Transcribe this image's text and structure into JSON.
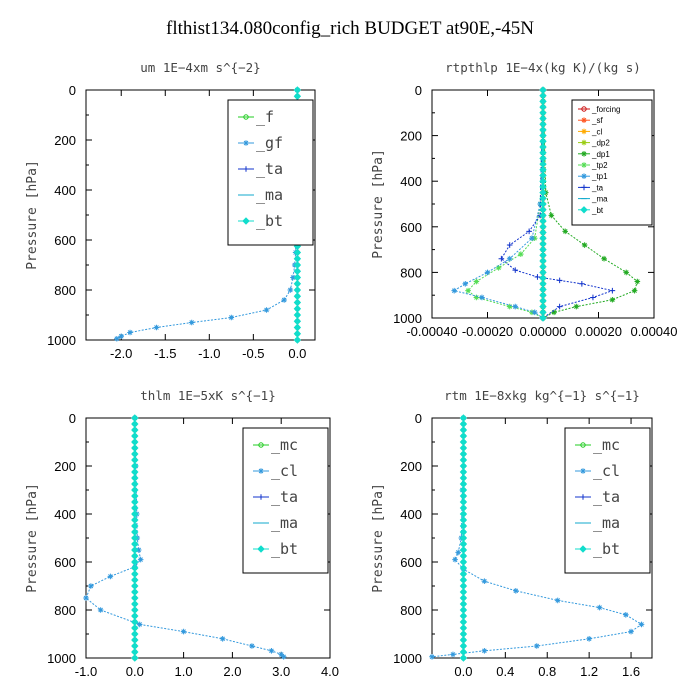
{
  "figure": {
    "suptitle": "flthist134.080config_rich  BUDGET at90E,-45N"
  },
  "chart_data": [
    {
      "type": "line",
      "title": "um  1E−4xm s^{−2}",
      "ylabel": "Pressure [hPa]",
      "ylim": [
        1000,
        0
      ],
      "xlim": [
        -2.4,
        0.2
      ],
      "xticks": [
        -2.0,
        -1.5,
        -1.0,
        -0.5,
        0.0
      ],
      "xtick_labels": [
        "-2.0",
        "-1.5",
        "-1.0",
        "-0.5",
        "0.0"
      ],
      "yticks": [
        0,
        200,
        400,
        600,
        800,
        1000
      ],
      "legend": "top-right",
      "series": [
        {
          "name": "_f",
          "color": "#22cc22",
          "marker": "circle",
          "x": [
            0.0,
            0.0,
            0.0,
            0.0,
            0.0,
            0.0,
            0.0,
            0.0,
            0.0,
            0.0,
            0.0
          ],
          "y": [
            0,
            100,
            200,
            300,
            400,
            500,
            600,
            700,
            800,
            900,
            1000
          ]
        },
        {
          "name": "_gf",
          "color": "#3399dd",
          "marker": "star",
          "x": [
            0.0,
            -0.01,
            -0.01,
            -0.02,
            -0.02,
            -0.03,
            -0.05,
            -0.08,
            -0.15,
            -0.35,
            -0.75,
            -1.2,
            -1.6,
            -1.9,
            -2.0,
            -2.05
          ],
          "y": [
            0,
            200,
            400,
            550,
            650,
            700,
            750,
            800,
            840,
            880,
            910,
            930,
            950,
            970,
            985,
            995
          ]
        },
        {
          "name": "_ta",
          "color": "#1133cc",
          "marker": "plus",
          "x": [
            0.0,
            0.0,
            0.0
          ],
          "y": [
            0,
            500,
            1000
          ]
        },
        {
          "name": "_ma",
          "color": "#11aacc",
          "marker": "dash",
          "x": [
            0.0,
            0.0,
            0.0
          ],
          "y": [
            0,
            500,
            1000
          ]
        },
        {
          "name": "_bt",
          "color": "#11ddcc",
          "marker": "diamond",
          "x": [
            0.0,
            0.0,
            0.0
          ],
          "y": [
            0,
            500,
            1000
          ]
        }
      ]
    },
    {
      "type": "line",
      "title": "rtpthlp  1E−4x(kg K)/(kg s)",
      "ylabel": "Pressure [hPa]",
      "ylim": [
        1000,
        0
      ],
      "xlim": [
        -0.0004,
        0.0004
      ],
      "xticks": [
        -0.0004,
        -0.0002,
        0.0,
        0.0002,
        0.0004
      ],
      "xtick_labels": [
        "-0.00040",
        "-0.00020",
        "0.00000",
        "0.00020",
        "0.00040"
      ],
      "yticks": [
        0,
        200,
        400,
        600,
        800,
        1000
      ],
      "legend": "top-right",
      "series": [
        {
          "name": "_forcing",
          "color": "#cc1111",
          "marker": "circle",
          "x": [
            0.0,
            0.0,
            0.0
          ],
          "y": [
            0,
            500,
            1000
          ]
        },
        {
          "name": "_sf",
          "color": "#ff5522",
          "marker": "star",
          "x": [
            0.0,
            0.0,
            0.0
          ],
          "y": [
            0,
            500,
            1000
          ]
        },
        {
          "name": "_cl",
          "color": "#ffaa00",
          "marker": "star",
          "x": [
            0.0,
            0.0,
            0.0
          ],
          "y": [
            0,
            500,
            1000
          ]
        },
        {
          "name": "_dp2",
          "color": "#99cc11",
          "marker": "star",
          "x": [
            0.0,
            0.0,
            0.0
          ],
          "y": [
            0,
            500,
            1000
          ]
        },
        {
          "name": "_dp1",
          "color": "#22aa22",
          "marker": "star",
          "x": [
            0.0,
            1e-05,
            3e-05,
            8e-05,
            0.00015,
            0.00022,
            0.0003,
            0.00034,
            0.00033,
            0.00025,
            0.00012,
            4e-05,
            0.0
          ],
          "y": [
            0,
            450,
            550,
            620,
            680,
            740,
            800,
            840,
            880,
            920,
            950,
            975,
            1000
          ]
        },
        {
          "name": "_tp2",
          "color": "#55dd55",
          "marker": "star",
          "x": [
            0.0,
            -1e-05,
            -3e-05,
            -8e-05,
            -0.00016,
            -0.00024,
            -0.00027,
            -0.00024,
            -0.00012,
            -4e-05,
            0.0
          ],
          "y": [
            0,
            500,
            650,
            720,
            780,
            840,
            880,
            910,
            950,
            975,
            1000
          ]
        },
        {
          "name": "_tp1",
          "color": "#3399dd",
          "marker": "star",
          "x": [
            0.0,
            -1e-05,
            -4e-05,
            -0.00012,
            -0.0002,
            -0.00028,
            -0.00032,
            -0.00022,
            -0.0001,
            -3e-05,
            0.0
          ],
          "y": [
            0,
            500,
            650,
            740,
            800,
            850,
            880,
            910,
            950,
            975,
            1000
          ]
        },
        {
          "name": "_ta",
          "color": "#1133cc",
          "marker": "plus",
          "x": [
            0.0,
            -1e-05,
            -5e-05,
            -0.00012,
            -0.00015,
            -0.0001,
            -2e-05,
            6e-05,
            0.00014,
            0.00025,
            0.00018,
            6e-05,
            0.0
          ],
          "y": [
            0,
            550,
            620,
            680,
            740,
            790,
            820,
            835,
            850,
            880,
            910,
            950,
            1000
          ]
        },
        {
          "name": "_ma",
          "color": "#11aacc",
          "marker": "dash",
          "x": [
            0.0,
            0.0,
            0.0
          ],
          "y": [
            0,
            500,
            1000
          ]
        },
        {
          "name": "_bt",
          "color": "#11ddcc",
          "marker": "diamond",
          "x": [
            0.0,
            0.0,
            0.0
          ],
          "y": [
            0,
            500,
            1000
          ]
        }
      ]
    },
    {
      "type": "line",
      "title": "thlm  1E−5xK s^{−1}",
      "ylabel": "Pressure [hPa]",
      "ylim": [
        1000,
        0
      ],
      "xlim": [
        -1.0,
        4.0
      ],
      "xticks": [
        -1.0,
        0.0,
        1.0,
        2.0,
        3.0,
        4.0
      ],
      "xtick_labels": [
        "-1.0",
        "0.0",
        "1.0",
        "2.0",
        "3.0",
        "4.0"
      ],
      "yticks": [
        0,
        200,
        400,
        600,
        800,
        1000
      ],
      "legend": "top-right",
      "series": [
        {
          "name": "_mc",
          "color": "#22cc22",
          "marker": "circle",
          "x": [
            0.0,
            0.0,
            0.0,
            0.0,
            0.0,
            0.0,
            0.0,
            0.0,
            0.0,
            0.0,
            0.0
          ],
          "y": [
            0,
            100,
            200,
            300,
            400,
            500,
            600,
            700,
            800,
            900,
            1000
          ]
        },
        {
          "name": "_cl",
          "color": "#3399dd",
          "marker": "star",
          "x": [
            0.0,
            0.02,
            0.04,
            0.05,
            0.08,
            0.12,
            0.0,
            -0.5,
            -0.9,
            -1.0,
            -0.7,
            0.1,
            1.0,
            1.8,
            2.4,
            2.8,
            3.0,
            3.05
          ],
          "y": [
            0,
            200,
            400,
            500,
            550,
            590,
            620,
            660,
            700,
            750,
            800,
            860,
            890,
            920,
            950,
            970,
            985,
            995
          ]
        },
        {
          "name": "_ta",
          "color": "#1133cc",
          "marker": "plus",
          "x": [
            0.0,
            0.0,
            0.0
          ],
          "y": [
            0,
            500,
            1000
          ]
        },
        {
          "name": "_ma",
          "color": "#11aacc",
          "marker": "dash",
          "x": [
            0.0,
            0.0,
            0.0
          ],
          "y": [
            0,
            500,
            1000
          ]
        },
        {
          "name": "_bt",
          "color": "#11ddcc",
          "marker": "diamond",
          "x": [
            0.0,
            0.0,
            0.0
          ],
          "y": [
            0,
            500,
            1000
          ]
        }
      ]
    },
    {
      "type": "line",
      "title": "rtm  1E−8xkg kg^{−1} s^{−1}",
      "ylabel": "Pressure [hPa]",
      "ylim": [
        1000,
        0
      ],
      "xlim": [
        -0.3,
        1.8
      ],
      "xticks": [
        0.0,
        0.4,
        0.8,
        1.2,
        1.6
      ],
      "xtick_labels": [
        "0.0",
        "0.4",
        "0.8",
        "1.2",
        "1.6"
      ],
      "yticks": [
        0,
        200,
        400,
        600,
        800,
        1000
      ],
      "legend": "top-right",
      "series": [
        {
          "name": "_mc",
          "color": "#22cc22",
          "marker": "circle",
          "x": [
            0.0,
            0.0,
            0.0,
            0.0,
            0.0,
            0.0,
            0.0,
            0.0,
            0.0,
            0.0,
            0.0
          ],
          "y": [
            0,
            100,
            200,
            300,
            400,
            500,
            600,
            700,
            800,
            900,
            1000
          ]
        },
        {
          "name": "_cl",
          "color": "#3399dd",
          "marker": "star",
          "x": [
            0.0,
            -0.01,
            -0.02,
            -0.05,
            -0.08,
            0.0,
            0.2,
            0.5,
            0.9,
            1.3,
            1.55,
            1.7,
            1.6,
            1.2,
            0.7,
            0.2,
            -0.1,
            -0.3
          ],
          "y": [
            0,
            300,
            500,
            560,
            590,
            630,
            680,
            720,
            760,
            790,
            820,
            860,
            890,
            920,
            950,
            970,
            985,
            995
          ]
        },
        {
          "name": "_ta",
          "color": "#1133cc",
          "marker": "plus",
          "x": [
            0.0,
            0.0,
            0.0
          ],
          "y": [
            0,
            500,
            1000
          ]
        },
        {
          "name": "_ma",
          "color": "#11aacc",
          "marker": "dash",
          "x": [
            0.0,
            0.0,
            0.0
          ],
          "y": [
            0,
            500,
            1000
          ]
        },
        {
          "name": "_bt",
          "color": "#11ddcc",
          "marker": "diamond",
          "x": [
            0.0,
            0.0,
            0.0
          ],
          "y": [
            0,
            500,
            1000
          ]
        }
      ]
    }
  ]
}
